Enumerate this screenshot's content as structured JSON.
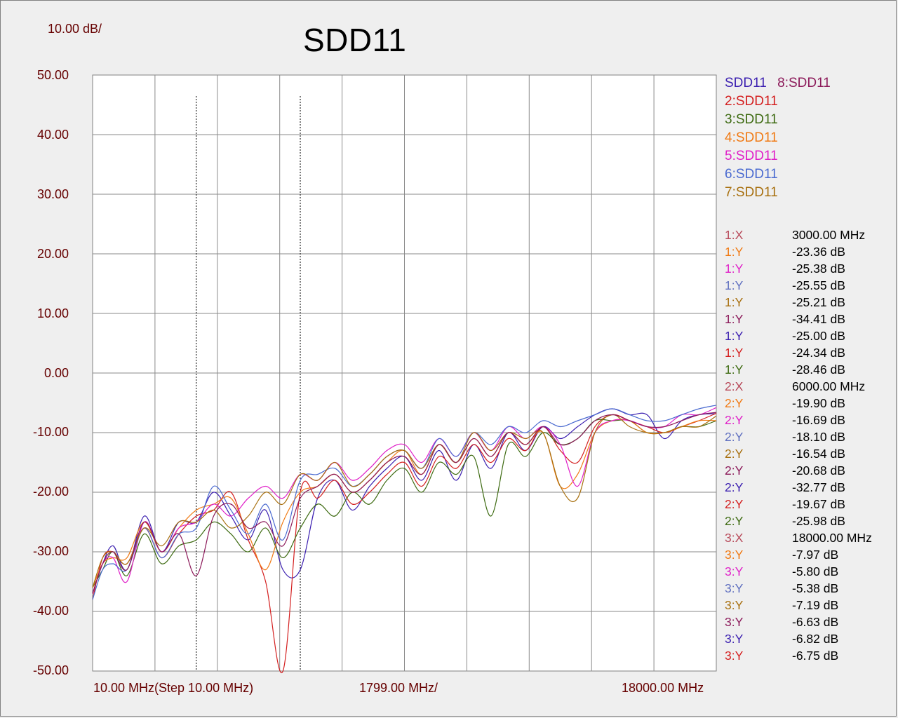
{
  "header": {
    "scale_label": "10.00 dB/",
    "title": "SDD11"
  },
  "x_axis_labels": {
    "start": "10.00 MHz(Step 10.00 MHz)",
    "division": "1799.00 MHz/",
    "end": "18000.00 MHz"
  },
  "legend": [
    {
      "text": "SDD11",
      "color": "#3b1fb0"
    },
    {
      "text": "8:SDD11",
      "color": "#8c1a5a"
    },
    {
      "text": "2:SDD11",
      "color": "#d42020"
    },
    {
      "text": "3:SDD11",
      "color": "#3e6b12"
    },
    {
      "text": "4:SDD11",
      "color": "#f07a14"
    },
    {
      "text": "5:SDD11",
      "color": "#e020c8"
    },
    {
      "text": "6:SDD11",
      "color": "#4a6ad0"
    },
    {
      "text": "7:SDD11",
      "color": "#a87010"
    }
  ],
  "markers": [
    {
      "label": "1:X",
      "value": "3000.00 MHz",
      "color": "#b84a5a"
    },
    {
      "label": "1:Y",
      "value": "-23.36 dB",
      "color": "#f07a14"
    },
    {
      "label": "1:Y",
      "value": "-25.38 dB",
      "color": "#e020c8"
    },
    {
      "label": "1:Y",
      "value": "-25.55 dB",
      "color": "#6070c0"
    },
    {
      "label": "1:Y",
      "value": "-25.21 dB",
      "color": "#a87010"
    },
    {
      "label": "1:Y",
      "value": "-34.41 dB",
      "color": "#8c1a5a"
    },
    {
      "label": "1:Y",
      "value": "-25.00 dB",
      "color": "#3b1fb0"
    },
    {
      "label": "1:Y",
      "value": "-24.34 dB",
      "color": "#d42020"
    },
    {
      "label": "1:Y",
      "value": "-28.46 dB",
      "color": "#3e6b12"
    },
    {
      "label": "2:X",
      "value": "6000.00 MHz",
      "color": "#b84a5a"
    },
    {
      "label": "2:Y",
      "value": "-19.90 dB",
      "color": "#f07a14"
    },
    {
      "label": "2:Y",
      "value": "-16.69 dB",
      "color": "#e020c8"
    },
    {
      "label": "2:Y",
      "value": "-18.10 dB",
      "color": "#6070c0"
    },
    {
      "label": "2:Y",
      "value": "-16.54 dB",
      "color": "#a87010"
    },
    {
      "label": "2:Y",
      "value": "-20.68 dB",
      "color": "#8c1a5a"
    },
    {
      "label": "2:Y",
      "value": "-32.77 dB",
      "color": "#3b1fb0"
    },
    {
      "label": "2:Y",
      "value": "-19.67 dB",
      "color": "#d42020"
    },
    {
      "label": "2:Y",
      "value": "-25.98 dB",
      "color": "#3e6b12"
    },
    {
      "label": "3:X",
      "value": "18000.00 MHz",
      "color": "#b84a5a"
    },
    {
      "label": "3:Y",
      "value": "-7.97 dB",
      "color": "#f07a14"
    },
    {
      "label": "3:Y",
      "value": "-5.80 dB",
      "color": "#e020c8"
    },
    {
      "label": "3:Y",
      "value": "-5.38 dB",
      "color": "#6070c0"
    },
    {
      "label": "3:Y",
      "value": "-7.19 dB",
      "color": "#a87010"
    },
    {
      "label": "3:Y",
      "value": "-6.63 dB",
      "color": "#8c1a5a"
    },
    {
      "label": "3:Y",
      "value": "-6.82 dB",
      "color": "#3b1fb0"
    },
    {
      "label": "3:Y",
      "value": "-6.75 dB",
      "color": "#d42020"
    }
  ],
  "chart_data": {
    "type": "line",
    "title": "SDD11",
    "xlabel": "",
    "ylabel": "",
    "xlim": [
      10,
      18000
    ],
    "ylim": [
      -50,
      50
    ],
    "y_ticks": [
      "50.00",
      "40.00",
      "30.00",
      "20.00",
      "10.00",
      "0.00",
      "-10.00",
      "-20.00",
      "-30.00",
      "-40.00",
      "-50.00"
    ],
    "x_divisions": 10,
    "y_divisions": 10,
    "grid": true,
    "legend_position": "right",
    "vertical_markers_mhz": [
      3000,
      6000,
      18000
    ],
    "series": [
      {
        "name": "SDD11",
        "color": "#3b1fb0",
        "x": [
          10,
          300,
          600,
          1000,
          1500,
          2000,
          2500,
          3000,
          3500,
          4000,
          4500,
          5000,
          5500,
          6000,
          6500,
          7000,
          7500,
          8000,
          8500,
          9000,
          9500,
          10000,
          10500,
          11000,
          11500,
          12000,
          12500,
          13000,
          13500,
          14000,
          14500,
          15000,
          15500,
          16000,
          16500,
          17000,
          17500,
          18000
        ],
        "y": [
          -37,
          -32,
          -29,
          -33,
          -24,
          -30,
          -25,
          -25,
          -20,
          -24,
          -28,
          -23,
          -33,
          -33,
          -21,
          -18,
          -23,
          -19,
          -16,
          -14,
          -18,
          -13,
          -18,
          -12,
          -16,
          -10,
          -13,
          -9,
          -11,
          -9,
          -7,
          -6,
          -7,
          -7,
          -11,
          -8,
          -7,
          -6.8
        ]
      },
      {
        "name": "2:SDD11",
        "color": "#d42020",
        "x": [
          10,
          300,
          600,
          1000,
          1500,
          2000,
          2500,
          3000,
          3500,
          4000,
          4500,
          5000,
          5500,
          6000,
          6500,
          7000,
          7500,
          8000,
          8500,
          9000,
          9500,
          10000,
          10500,
          11000,
          11500,
          12000,
          12500,
          13000,
          13500,
          14000,
          14500,
          15000,
          15500,
          16000,
          16500,
          17000,
          17500,
          18000
        ],
        "y": [
          -38,
          -31,
          -30,
          -32,
          -26,
          -31,
          -27,
          -24,
          -23,
          -20,
          -28,
          -35,
          -50,
          -20,
          -21,
          -18,
          -22,
          -20,
          -17,
          -15,
          -19,
          -14,
          -16,
          -12,
          -15,
          -11,
          -13,
          -9,
          -13,
          -15,
          -9,
          -7,
          -8,
          -9,
          -10,
          -9,
          -8,
          -6.75
        ]
      },
      {
        "name": "3:SDD11",
        "color": "#3e6b12",
        "x": [
          10,
          300,
          600,
          1000,
          1500,
          2000,
          2500,
          3000,
          3500,
          4000,
          4500,
          5000,
          5500,
          6000,
          6500,
          7000,
          7500,
          8000,
          8500,
          9000,
          9500,
          10000,
          10500,
          11000,
          11500,
          12000,
          12500,
          13000,
          13500,
          14000,
          14500,
          15000,
          15500,
          16000,
          16500,
          17000,
          17500,
          18000
        ],
        "y": [
          -36,
          -33,
          -30,
          -34,
          -27,
          -32,
          -29,
          -28,
          -25,
          -27,
          -30,
          -26,
          -31,
          -26,
          -22,
          -24,
          -20,
          -22,
          -18,
          -16,
          -20,
          -15,
          -17,
          -14,
          -24,
          -12,
          -14,
          -10,
          -12,
          -11,
          -8,
          -8,
          -8,
          -10,
          -10,
          -9,
          -9,
          -8
        ]
      },
      {
        "name": "4:SDD11",
        "color": "#f07a14",
        "x": [
          10,
          300,
          600,
          1000,
          1500,
          2000,
          2500,
          3000,
          3500,
          4000,
          4500,
          5000,
          5500,
          6000,
          6500,
          7000,
          7500,
          8000,
          8500,
          9000,
          9500,
          10000,
          10500,
          11000,
          11500,
          12000,
          12500,
          13000,
          13500,
          14000,
          14500,
          15000,
          15500,
          16000,
          16500,
          17000,
          17500,
          18000
        ],
        "y": [
          -36,
          -32,
          -31,
          -31,
          -25,
          -30,
          -26,
          -23,
          -22,
          -21,
          -27,
          -33,
          -25,
          -20,
          -19,
          -17,
          -20,
          -18,
          -15,
          -13,
          -17,
          -12,
          -15,
          -11,
          -14,
          -10,
          -12,
          -10,
          -19,
          -17,
          -10,
          -8,
          -8,
          -10,
          -10,
          -9,
          -8,
          -8
        ]
      },
      {
        "name": "5:SDD11",
        "color": "#e020c8",
        "x": [
          10,
          300,
          600,
          1000,
          1500,
          2000,
          2500,
          3000,
          3500,
          4000,
          4500,
          5000,
          5500,
          6000,
          6500,
          7000,
          7500,
          8000,
          8500,
          9000,
          9500,
          10000,
          10500,
          11000,
          11500,
          12000,
          12500,
          13000,
          13500,
          14000,
          14500,
          15000,
          15500,
          16000,
          16500,
          17000,
          17500,
          18000
        ],
        "y": [
          -37,
          -32,
          -31,
          -35,
          -25,
          -30,
          -26,
          -25,
          -22,
          -24,
          -21,
          -19,
          -21,
          -17,
          -18,
          -15,
          -18,
          -16,
          -13,
          -12,
          -15,
          -11,
          -14,
          -10,
          -13,
          -9,
          -11,
          -9,
          -12,
          -19,
          -10,
          -8,
          -8,
          -9,
          -9,
          -7,
          -7,
          -5.8
        ]
      },
      {
        "name": "6:SDD11",
        "color": "#4a6ad0",
        "x": [
          10,
          300,
          600,
          1000,
          1500,
          2000,
          2500,
          3000,
          3500,
          4000,
          4500,
          5000,
          5500,
          6000,
          6500,
          7000,
          7500,
          8000,
          8500,
          9000,
          9500,
          10000,
          10500,
          11000,
          11500,
          12000,
          12500,
          13000,
          13500,
          14000,
          14500,
          15000,
          15500,
          16000,
          16500,
          17000,
          17500,
          18000
        ],
        "y": [
          -38,
          -33,
          -32,
          -33,
          -26,
          -31,
          -27,
          -26,
          -19,
          -23,
          -27,
          -22,
          -28,
          -18,
          -17,
          -16,
          -19,
          -17,
          -14,
          -13,
          -16,
          -11,
          -14,
          -10,
          -12,
          -9,
          -10,
          -8,
          -9,
          -8,
          -7,
          -6,
          -7,
          -8,
          -8,
          -7,
          -6,
          -5.4
        ]
      },
      {
        "name": "7:SDD11",
        "color": "#a87010",
        "x": [
          10,
          300,
          600,
          1000,
          1500,
          2000,
          2500,
          3000,
          3500,
          4000,
          4500,
          5000,
          5500,
          6000,
          6500,
          7000,
          7500,
          8000,
          8500,
          9000,
          9500,
          10000,
          10500,
          11000,
          11500,
          12000,
          12500,
          13000,
          13500,
          14000,
          14500,
          15000,
          15500,
          16000,
          16500,
          17000,
          17500,
          18000
        ],
        "y": [
          -36,
          -31,
          -30,
          -32,
          -26,
          -29,
          -25,
          -25,
          -23,
          -26,
          -24,
          -20,
          -22,
          -17,
          -18,
          -15,
          -19,
          -17,
          -14,
          -13,
          -16,
          -12,
          -15,
          -10,
          -13,
          -10,
          -11,
          -10,
          -19,
          -21,
          -10,
          -7,
          -9,
          -10,
          -10,
          -9,
          -9,
          -7.2
        ]
      },
      {
        "name": "8:SDD11",
        "color": "#8c1a5a",
        "x": [
          10,
          300,
          600,
          1000,
          1500,
          2000,
          2500,
          3000,
          3500,
          4000,
          4500,
          5000,
          5500,
          6000,
          6500,
          7000,
          7500,
          8000,
          8500,
          9000,
          9500,
          10000,
          10500,
          11000,
          11500,
          12000,
          12500,
          13000,
          13500,
          14000,
          14500,
          15000,
          15500,
          16000,
          16500,
          17000,
          17500,
          18000
        ],
        "y": [
          -37,
          -32,
          -30,
          -33,
          -25,
          -30,
          -27,
          -34,
          -24,
          -22,
          -26,
          -25,
          -29,
          -21,
          -19,
          -17,
          -20,
          -18,
          -15,
          -14,
          -17,
          -12,
          -15,
          -11,
          -14,
          -10,
          -12,
          -9,
          -12,
          -11,
          -8,
          -7,
          -8,
          -9,
          -9,
          -8,
          -7,
          -6.6
        ]
      }
    ]
  }
}
